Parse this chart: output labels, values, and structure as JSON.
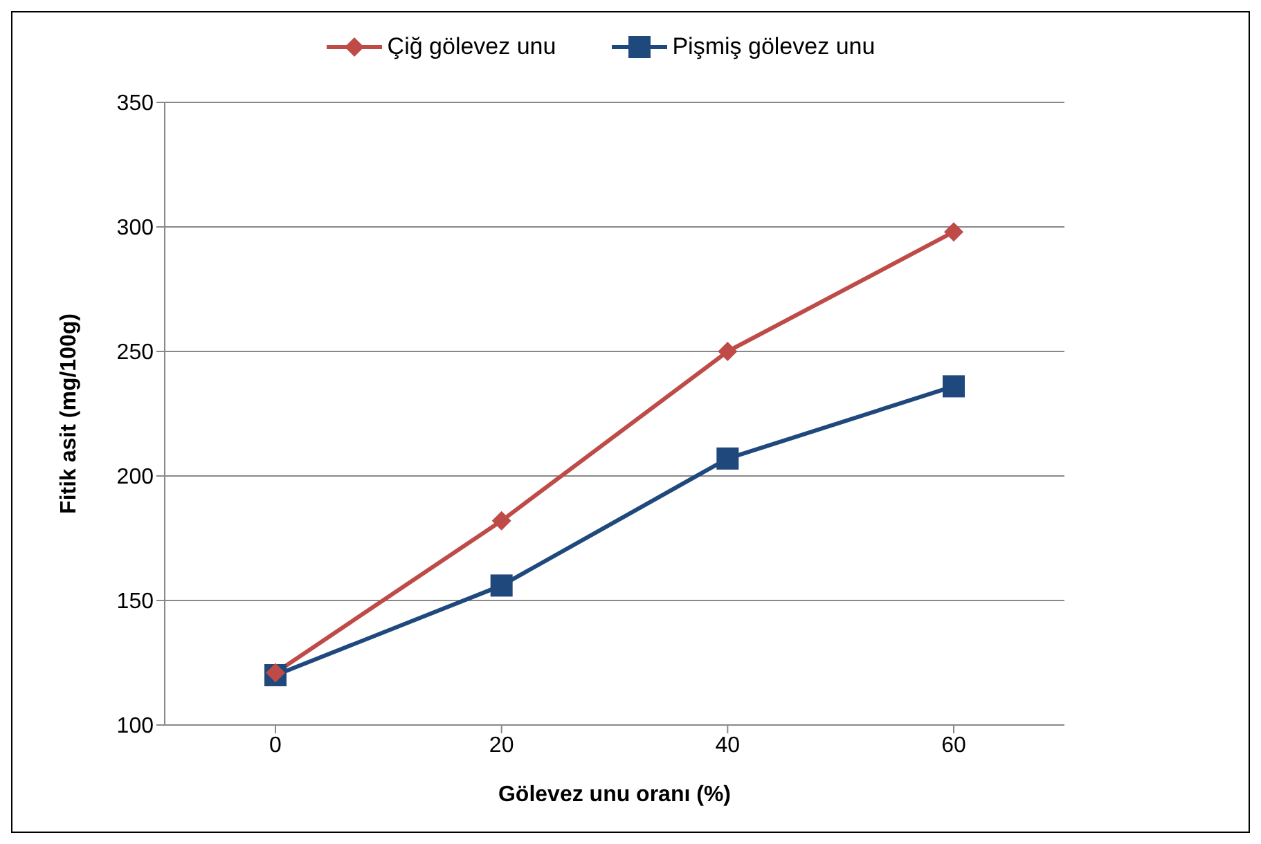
{
  "chart_data": {
    "type": "line",
    "xlabel": "Gölevez unu oranı (%)",
    "ylabel": "Fitik asit (mg/100g)",
    "categories": [
      "0",
      "20",
      "40",
      "60"
    ],
    "series": [
      {
        "name": "Çiğ gölevez unu",
        "color": "#be4b48",
        "marker": "diamond",
        "values": [
          121,
          182,
          250,
          298
        ]
      },
      {
        "name": "Pişmiş gölevez unu",
        "color": "#1f497d",
        "marker": "square",
        "values": [
          120,
          156,
          207,
          236
        ]
      }
    ],
    "ylim": [
      100,
      350
    ],
    "yticks": [
      100,
      150,
      200,
      250,
      300,
      350
    ],
    "grid": "y",
    "legend": "top",
    "line_style": "solid"
  }
}
